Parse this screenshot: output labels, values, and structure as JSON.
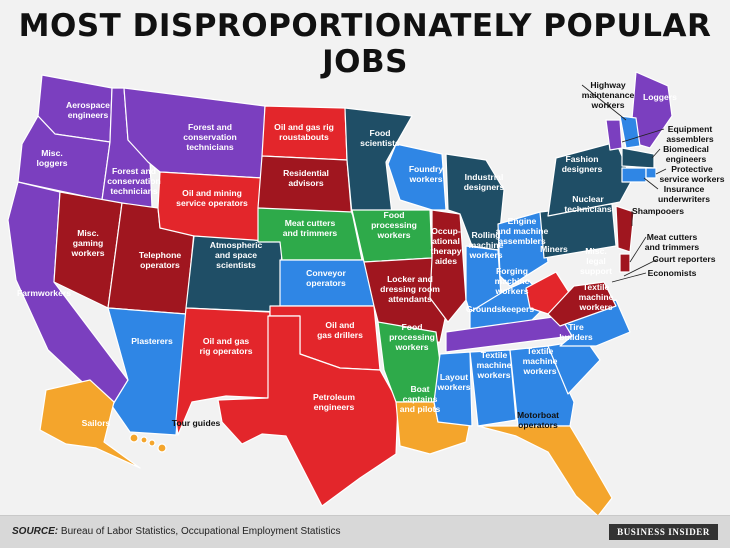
{
  "title": "MOST DISPROPORTIONATELY POPULAR JOBS",
  "footer": {
    "source_label": "SOURCE:",
    "source_text": " Bureau of Labor Statistics, Occupational Employment Statistics",
    "brand": "BUSINESS INSIDER"
  },
  "colors": {
    "purple": "#7b3fbf",
    "dark_teal": "#1f4e66",
    "red": "#e3262b",
    "dark_red": "#a0161f",
    "green": "#2eaa4a",
    "blue": "#2f86e5",
    "orange": "#f4a52c"
  },
  "states": {
    "wa": [
      "Aerospace",
      "engineers"
    ],
    "or": [
      "Misc.",
      "loggers"
    ],
    "ca": [
      "Farmworkers"
    ],
    "id_n": [
      "Forest and",
      "conservation",
      "technicians"
    ],
    "mt": [
      "Forest and",
      "conservation",
      "technicians"
    ],
    "nv": [
      "Misc.",
      "gaming",
      "workers"
    ],
    "ut": [
      "Telephone",
      "operators"
    ],
    "az": [
      "Plasterers"
    ],
    "wy": [
      "Oil and mining",
      "service operators"
    ],
    "co": [
      "Atmospheric",
      "and space",
      "scientists"
    ],
    "nm": [
      "Oil and gas",
      "rig operators"
    ],
    "nd": [
      "Oil and gas rig",
      "roustabouts"
    ],
    "sd": [
      "Residential",
      "advisors"
    ],
    "ne": [
      "Meat cutters",
      "and trimmers"
    ],
    "ks": [
      "Conveyor",
      "operators"
    ],
    "ok": [
      "Oil and",
      "gas drillers"
    ],
    "tx": [
      "Petroleum",
      "engineers"
    ],
    "mn": [
      "Food",
      "scientists"
    ],
    "ia": [
      "Food",
      "processing",
      "workers"
    ],
    "mo": [
      "Locker and",
      "dressing room",
      "attendants"
    ],
    "ar": [
      "Food",
      "processing",
      "workers"
    ],
    "la": [
      "Boat",
      "captains",
      "and pilots"
    ],
    "wi": [
      "Foundry",
      "workers"
    ],
    "il": [
      "Occup-",
      "ational",
      "therapy",
      "aides"
    ],
    "mi": [
      "Industrial",
      "designers"
    ],
    "in": [
      "Rolling",
      "machine",
      "workers"
    ],
    "oh": [
      "Engine",
      "and machine",
      "assemblers"
    ],
    "ky": [
      "Forging",
      "machine",
      "workers"
    ],
    "tn": [
      "Groundskeepers"
    ],
    "ms": [
      "Layout",
      "workers"
    ],
    "al": [
      "Textile",
      "machine",
      "workers"
    ],
    "ga": [
      "Textile",
      "machine",
      "workers"
    ],
    "sc": [
      "Tire",
      "builders"
    ],
    "nc": [
      "Textile",
      "machine",
      "workers"
    ],
    "fl": [
      "Motorboat",
      "operators"
    ],
    "wv": [
      "Miners"
    ],
    "va": [
      "Misc.",
      "legal",
      "support"
    ],
    "pa": [
      "Nuclear",
      "technicians"
    ],
    "ny": [
      "Fashion",
      "designers"
    ],
    "me": [
      "Loggers"
    ],
    "ak": [
      "Sailors"
    ],
    "hi": [
      "Tour guides"
    ]
  },
  "callouts": {
    "nh": [
      "Highway",
      "maintenance",
      "workers"
    ],
    "vt": [
      "Equipment",
      "assemblers"
    ],
    "ma": [
      "Biomedical",
      "engineers"
    ],
    "ri": [
      "Protective",
      "service workers"
    ],
    "ct": [
      "Insurance",
      "underwriters"
    ],
    "nj": [
      "Shampooers"
    ],
    "de": [
      "Meat cutters",
      "and trimmers"
    ],
    "md": [
      "Court reporters"
    ],
    "dc": [
      "Economists"
    ]
  }
}
